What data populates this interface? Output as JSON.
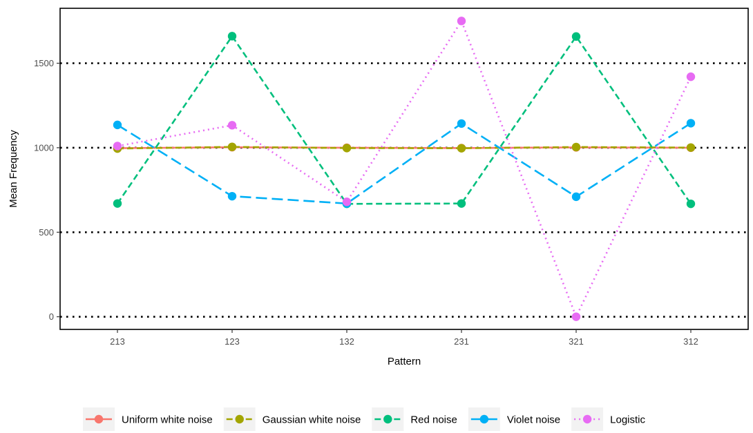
{
  "chart_data": {
    "type": "line",
    "title": "",
    "xlabel": "Pattern",
    "ylabel": "Mean Frequency",
    "categories": [
      "213",
      "123",
      "132",
      "231",
      "321",
      "312"
    ],
    "ylim": [
      -75,
      1825
    ],
    "yticks": [
      0,
      500,
      1000,
      1500
    ],
    "grid": {
      "horizontal": true,
      "vertical": false,
      "style": "dotted"
    },
    "legend_position": "bottom",
    "series": [
      {
        "name": "Uniform white noise",
        "color": "#F8766D",
        "line": "solid",
        "values": [
          997,
          1003,
          1000,
          998,
          1002,
          1000
        ]
      },
      {
        "name": "Gaussian white noise",
        "color": "#A3A500",
        "line": "dashed",
        "values": [
          995,
          1005,
          998,
          997,
          1004,
          1001
        ]
      },
      {
        "name": "Red noise",
        "color": "#00BF7D",
        "line": "dashed",
        "values": [
          670,
          1660,
          668,
          670,
          1658,
          668
        ]
      },
      {
        "name": "Violet noise",
        "color": "#00B0F6",
        "line": "longdash",
        "values": [
          1135,
          713,
          670,
          1143,
          710,
          1145
        ]
      },
      {
        "name": "Logistic",
        "color": "#E76BF3",
        "line": "dotted",
        "values": [
          1010,
          1133,
          680,
          1750,
          0,
          1420
        ]
      }
    ]
  }
}
